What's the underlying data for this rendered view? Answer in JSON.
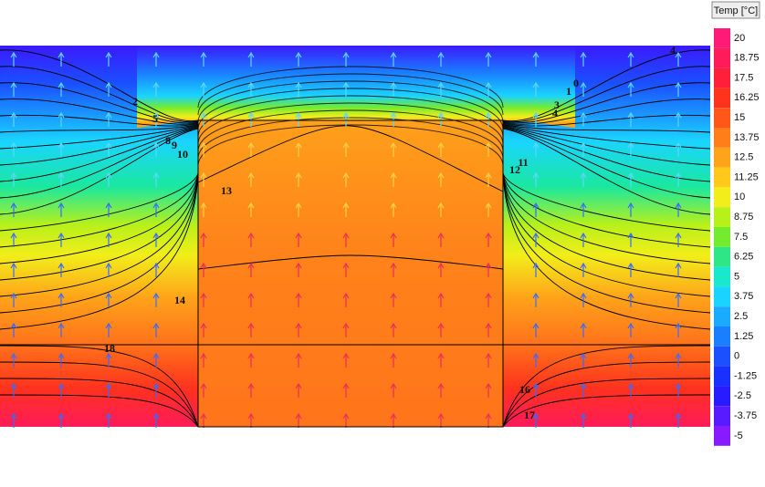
{
  "chart_data": {
    "type": "contour",
    "colorbar_title": "Temp [°C]",
    "levels": [
      20,
      18.75,
      17.5,
      16.25,
      15,
      13.75,
      12.5,
      11.25,
      10,
      8.75,
      7.5,
      6.25,
      5,
      3.75,
      2.5,
      1.25,
      0,
      -1.25,
      -2.5,
      -3.75,
      -5
    ],
    "colors": [
      "#ff1a78",
      "#ff1a5a",
      "#ff1f3a",
      "#ff321e",
      "#ff561a",
      "#ff7e1a",
      "#ffa41a",
      "#ffc81a",
      "#f2ee1a",
      "#b8f01a",
      "#74ec2e",
      "#2ee686",
      "#1ae8cc",
      "#1ad4ff",
      "#1aaaff",
      "#1a7eff",
      "#1a50ff",
      "#1a30ff",
      "#2a1aff",
      "#581aff",
      "#881aff"
    ],
    "contour_labels": [
      13,
      14,
      18,
      16,
      17,
      12,
      11,
      10,
      9,
      8,
      5,
      4,
      3,
      2,
      1,
      0,
      4
    ]
  }
}
